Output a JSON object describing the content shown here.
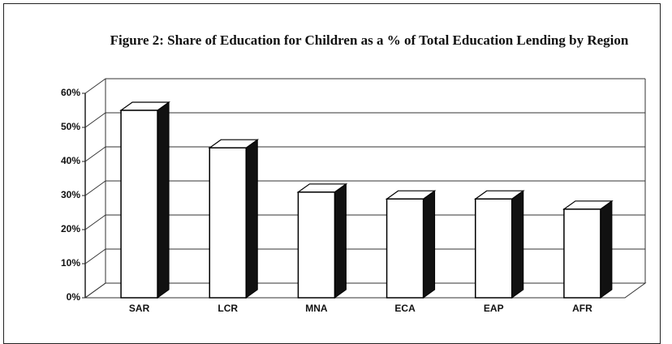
{
  "chart_data": {
    "type": "bar",
    "title": "Figure 2: Share of Education for Children as a % of Total Education Lending by Region",
    "categories": [
      "SAR",
      "LCR",
      "MNA",
      "ECA",
      "EAP",
      "AFR"
    ],
    "values": [
      55,
      44,
      31,
      29,
      29,
      26
    ],
    "color": "#ffffff",
    "ylim": [
      0,
      60
    ],
    "yticks": [
      {
        "value": 0,
        "label": "0%"
      },
      {
        "value": 10,
        "label": "10%"
      },
      {
        "value": 20,
        "label": "20%"
      },
      {
        "value": 30,
        "label": "30%"
      },
      {
        "value": 40,
        "label": "40%"
      },
      {
        "value": 50,
        "label": "50%"
      },
      {
        "value": 60,
        "label": "60%"
      }
    ],
    "grid": true
  }
}
